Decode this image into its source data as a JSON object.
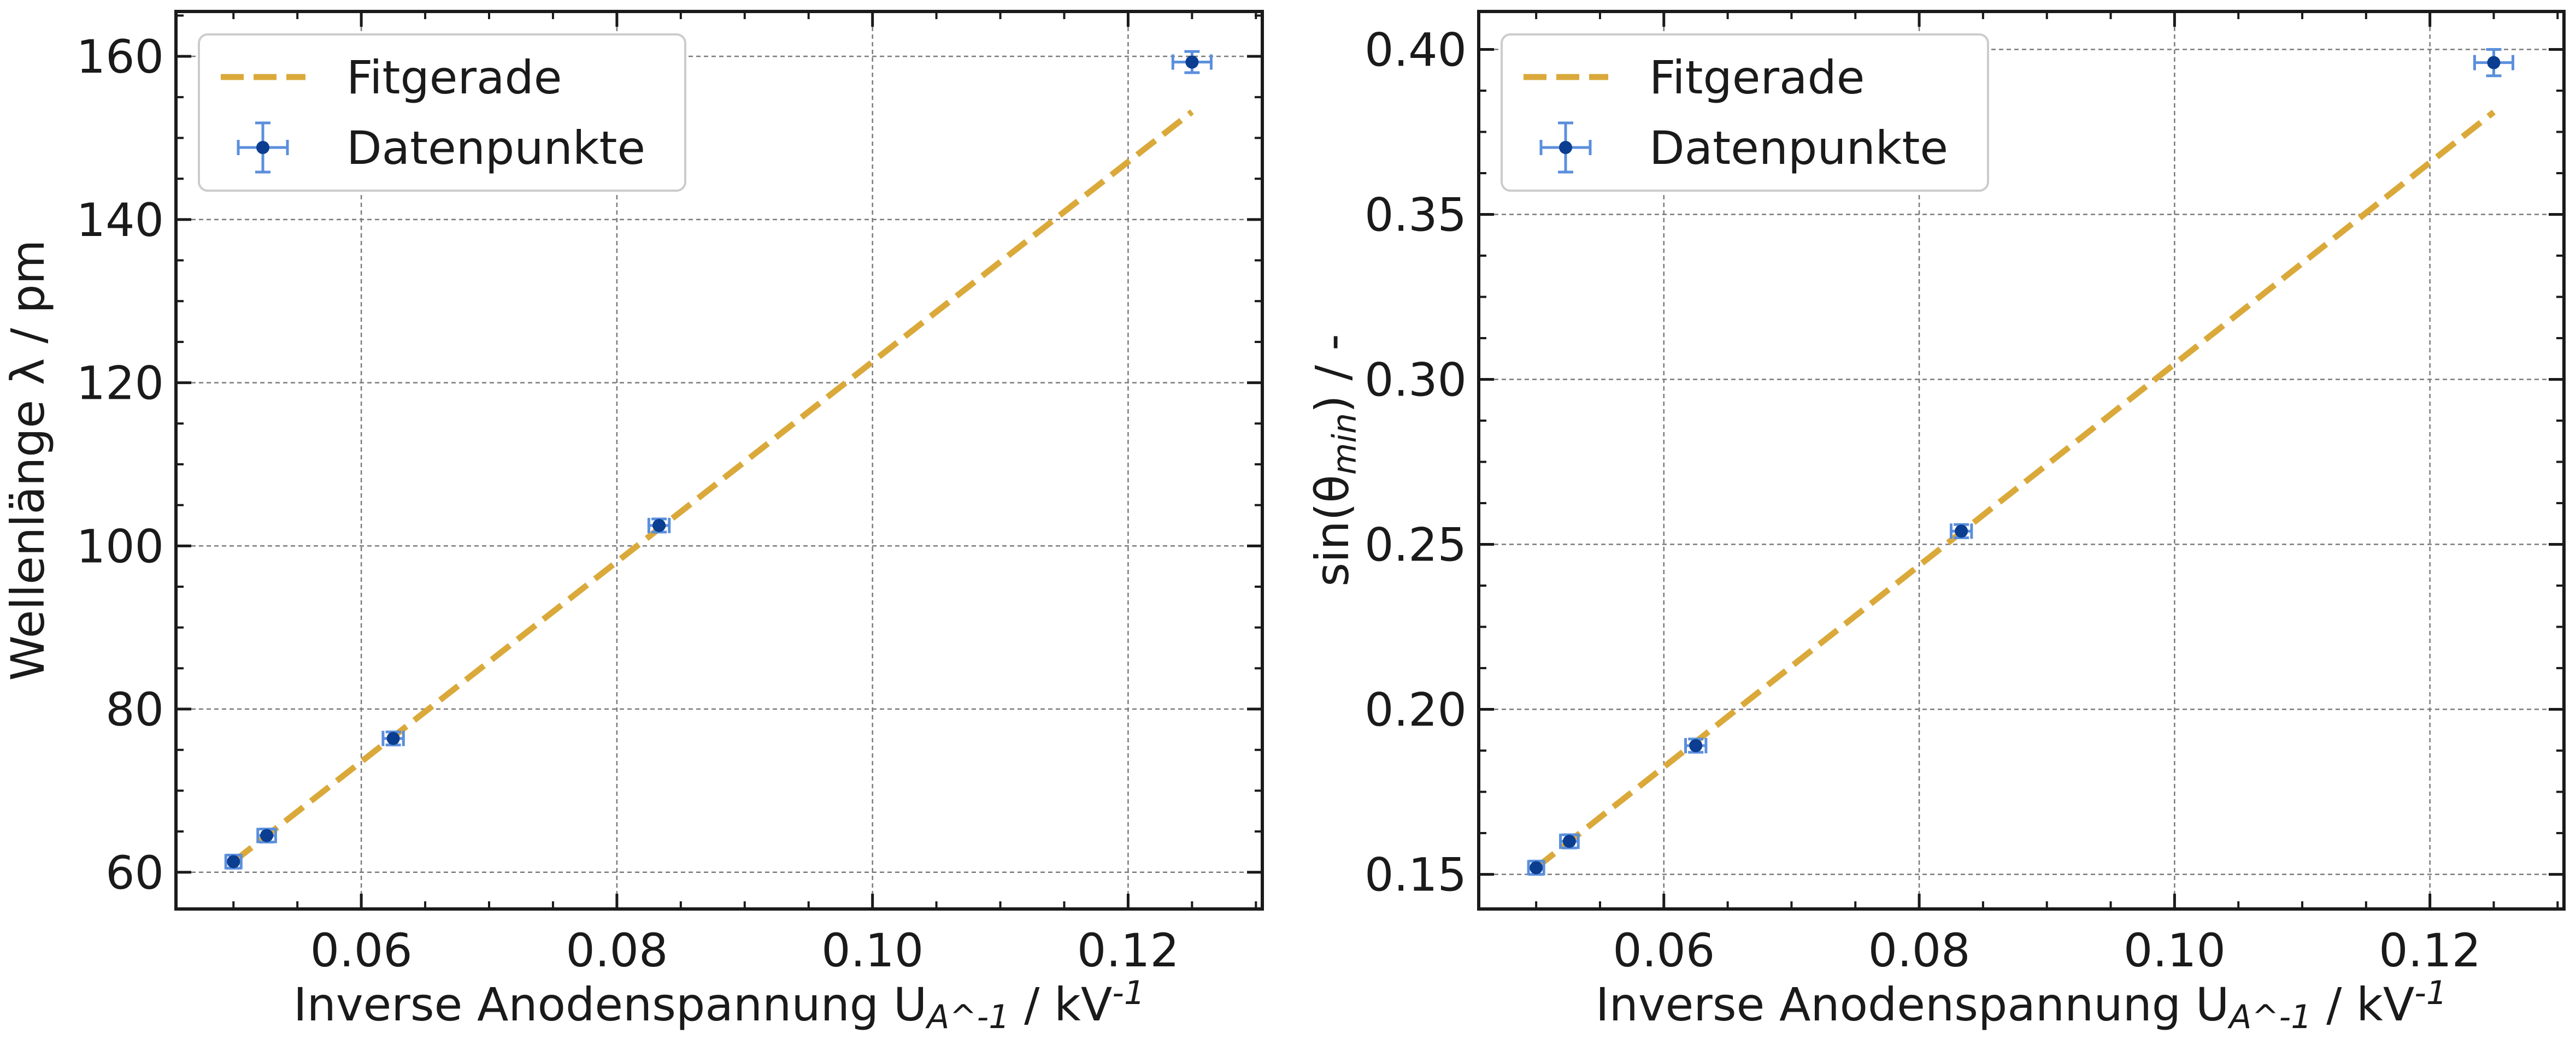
{
  "figure": {
    "colors": {
      "fit": "#DAA93A",
      "errorbar": "#5B8FDC",
      "marker": "#0B3D91",
      "grid": "#7a7a7a",
      "axes": "#1a1a1a"
    }
  },
  "chart_data": [
    {
      "type": "scatter",
      "xlabel": "Inverse Anodenspannung U_A^-1 / kV^-1",
      "ylabel": "Wellenlänge λ / pm",
      "xlim": [
        0.0455,
        0.1305
      ],
      "ylim": [
        55.5,
        165.5
      ],
      "xticks": [
        0.06,
        0.08,
        0.1,
        0.12
      ],
      "yticks": [
        60,
        80,
        100,
        120,
        140,
        160
      ],
      "xtick_labels": [
        "0.06",
        "0.08",
        "0.10",
        "0.12"
      ],
      "ytick_labels": [
        "60",
        "80",
        "100",
        "120",
        "140",
        "160"
      ],
      "grid": true,
      "legend_position": "top-left",
      "legend": [
        "Fitgerade",
        "Datenpunkte"
      ],
      "series": [
        {
          "name": "Datenpunkte",
          "kind": "errorbar",
          "x": [
            0.05,
            0.0526,
            0.0625,
            0.0833,
            0.125
          ],
          "y": [
            61.3,
            64.5,
            76.4,
            102.5,
            159.3
          ],
          "xerr": [
            0.0006,
            0.0007,
            0.0008,
            0.0008,
            0.0015
          ],
          "yerr": [
            0.8,
            0.8,
            0.8,
            0.8,
            1.3
          ]
        },
        {
          "name": "Fitgerade",
          "kind": "line",
          "x": [
            0.05,
            0.125
          ],
          "y": [
            61.3,
            153.2
          ]
        }
      ]
    },
    {
      "type": "scatter",
      "xlabel": "Inverse Anodenspannung U_A^-1 / kV^-1",
      "ylabel": "sin(θ_min) / -",
      "xlim": [
        0.0455,
        0.1305
      ],
      "ylim": [
        0.1395,
        0.4115
      ],
      "xticks": [
        0.06,
        0.08,
        0.1,
        0.12
      ],
      "yticks": [
        0.15,
        0.2,
        0.25,
        0.3,
        0.35,
        0.4
      ],
      "xtick_labels": [
        "0.06",
        "0.08",
        "0.10",
        "0.12"
      ],
      "ytick_labels": [
        "0.15",
        "0.20",
        "0.25",
        "0.30",
        "0.35",
        "0.40"
      ],
      "grid": true,
      "legend_position": "top-left",
      "legend": [
        "Fitgerade",
        "Datenpunkte"
      ],
      "series": [
        {
          "name": "Datenpunkte",
          "kind": "errorbar",
          "x": [
            0.05,
            0.0526,
            0.0625,
            0.0833,
            0.125
          ],
          "y": [
            0.152,
            0.16,
            0.189,
            0.254,
            0.396
          ],
          "xerr": [
            0.0006,
            0.0007,
            0.0008,
            0.0008,
            0.0015
          ],
          "yerr": [
            0.002,
            0.002,
            0.002,
            0.002,
            0.004
          ]
        },
        {
          "name": "Fitgerade",
          "kind": "line",
          "x": [
            0.05,
            0.125
          ],
          "y": [
            0.152,
            0.381
          ]
        }
      ]
    }
  ]
}
